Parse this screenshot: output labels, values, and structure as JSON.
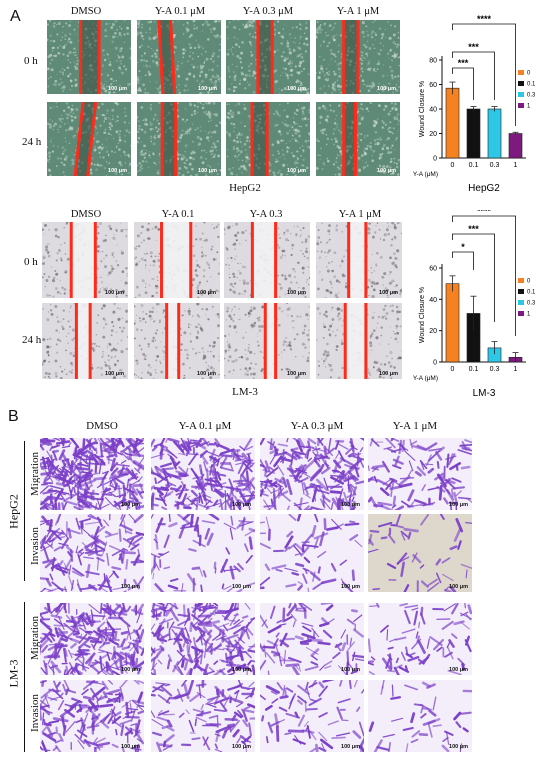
{
  "panel_a": {
    "letter": "A",
    "hepg2": {
      "col_headers": [
        "DMSO",
        "Y-A 0.1 μM",
        "Y-A 0.3 μM",
        "Y-A 1 μM"
      ],
      "row_labels": [
        "0 h",
        "24 h"
      ],
      "caption": "HepG2",
      "scale_bar": "100 μm"
    },
    "lm3": {
      "col_headers": [
        "DMSO",
        "Y-A 0.1",
        "Y-A 0.3",
        "Y-A 1 μM"
      ],
      "row_labels": [
        "0 h",
        "24 h"
      ],
      "caption": "LM-3",
      "scale_bar": "100 μm"
    }
  },
  "panel_b": {
    "letter": "B",
    "col_headers": [
      "DMSO",
      "Y-A 0.1 μM",
      "Y-A 0.3 μM",
      "Y-A 1 μM"
    ],
    "groups": [
      {
        "cell_line": "HepG2",
        "rows": [
          "Migration",
          "Invasion"
        ]
      },
      {
        "cell_line": "LM-3",
        "rows": [
          "Migration",
          "Invasion"
        ]
      }
    ],
    "scale_bar": "100 μm"
  },
  "colors": {
    "ctrl": "#f58220",
    "c01": "#111111",
    "c03": "#2fc7e6",
    "c1": "#7d1a7d",
    "wound_line": "#ff2a1a",
    "crystal_violet": "#7b3fc8"
  },
  "chart_data": [
    {
      "type": "bar",
      "categories": [
        "0",
        "0.1",
        "0.3",
        "1"
      ],
      "values": [
        57,
        40,
        40,
        20
      ],
      "errors": [
        5,
        2,
        2,
        1
      ],
      "xlabel": "Y-A (μM)",
      "ylabel": "Wound Closure %",
      "caption": "HepG2",
      "ylim": [
        0,
        80
      ],
      "yticks": [
        0,
        20,
        40,
        60,
        80
      ],
      "legend": [
        "0",
        "0.1",
        "0.3",
        "1"
      ],
      "significance": [
        "***",
        "***",
        "****"
      ]
    },
    {
      "type": "bar",
      "categories": [
        "0",
        "0.1",
        "0.3",
        "1"
      ],
      "values": [
        50,
        31,
        9,
        3
      ],
      "errors": [
        5,
        11,
        4,
        3
      ],
      "xlabel": "Y-A (μM)",
      "ylabel": "Wound Closure %",
      "caption": "LM-3",
      "ylim": [
        0,
        60
      ],
      "yticks": [
        0,
        20,
        40,
        60
      ],
      "legend": [
        "0",
        "0.1",
        "0.3",
        "1"
      ],
      "significance": [
        "*",
        "***",
        "****"
      ]
    }
  ]
}
